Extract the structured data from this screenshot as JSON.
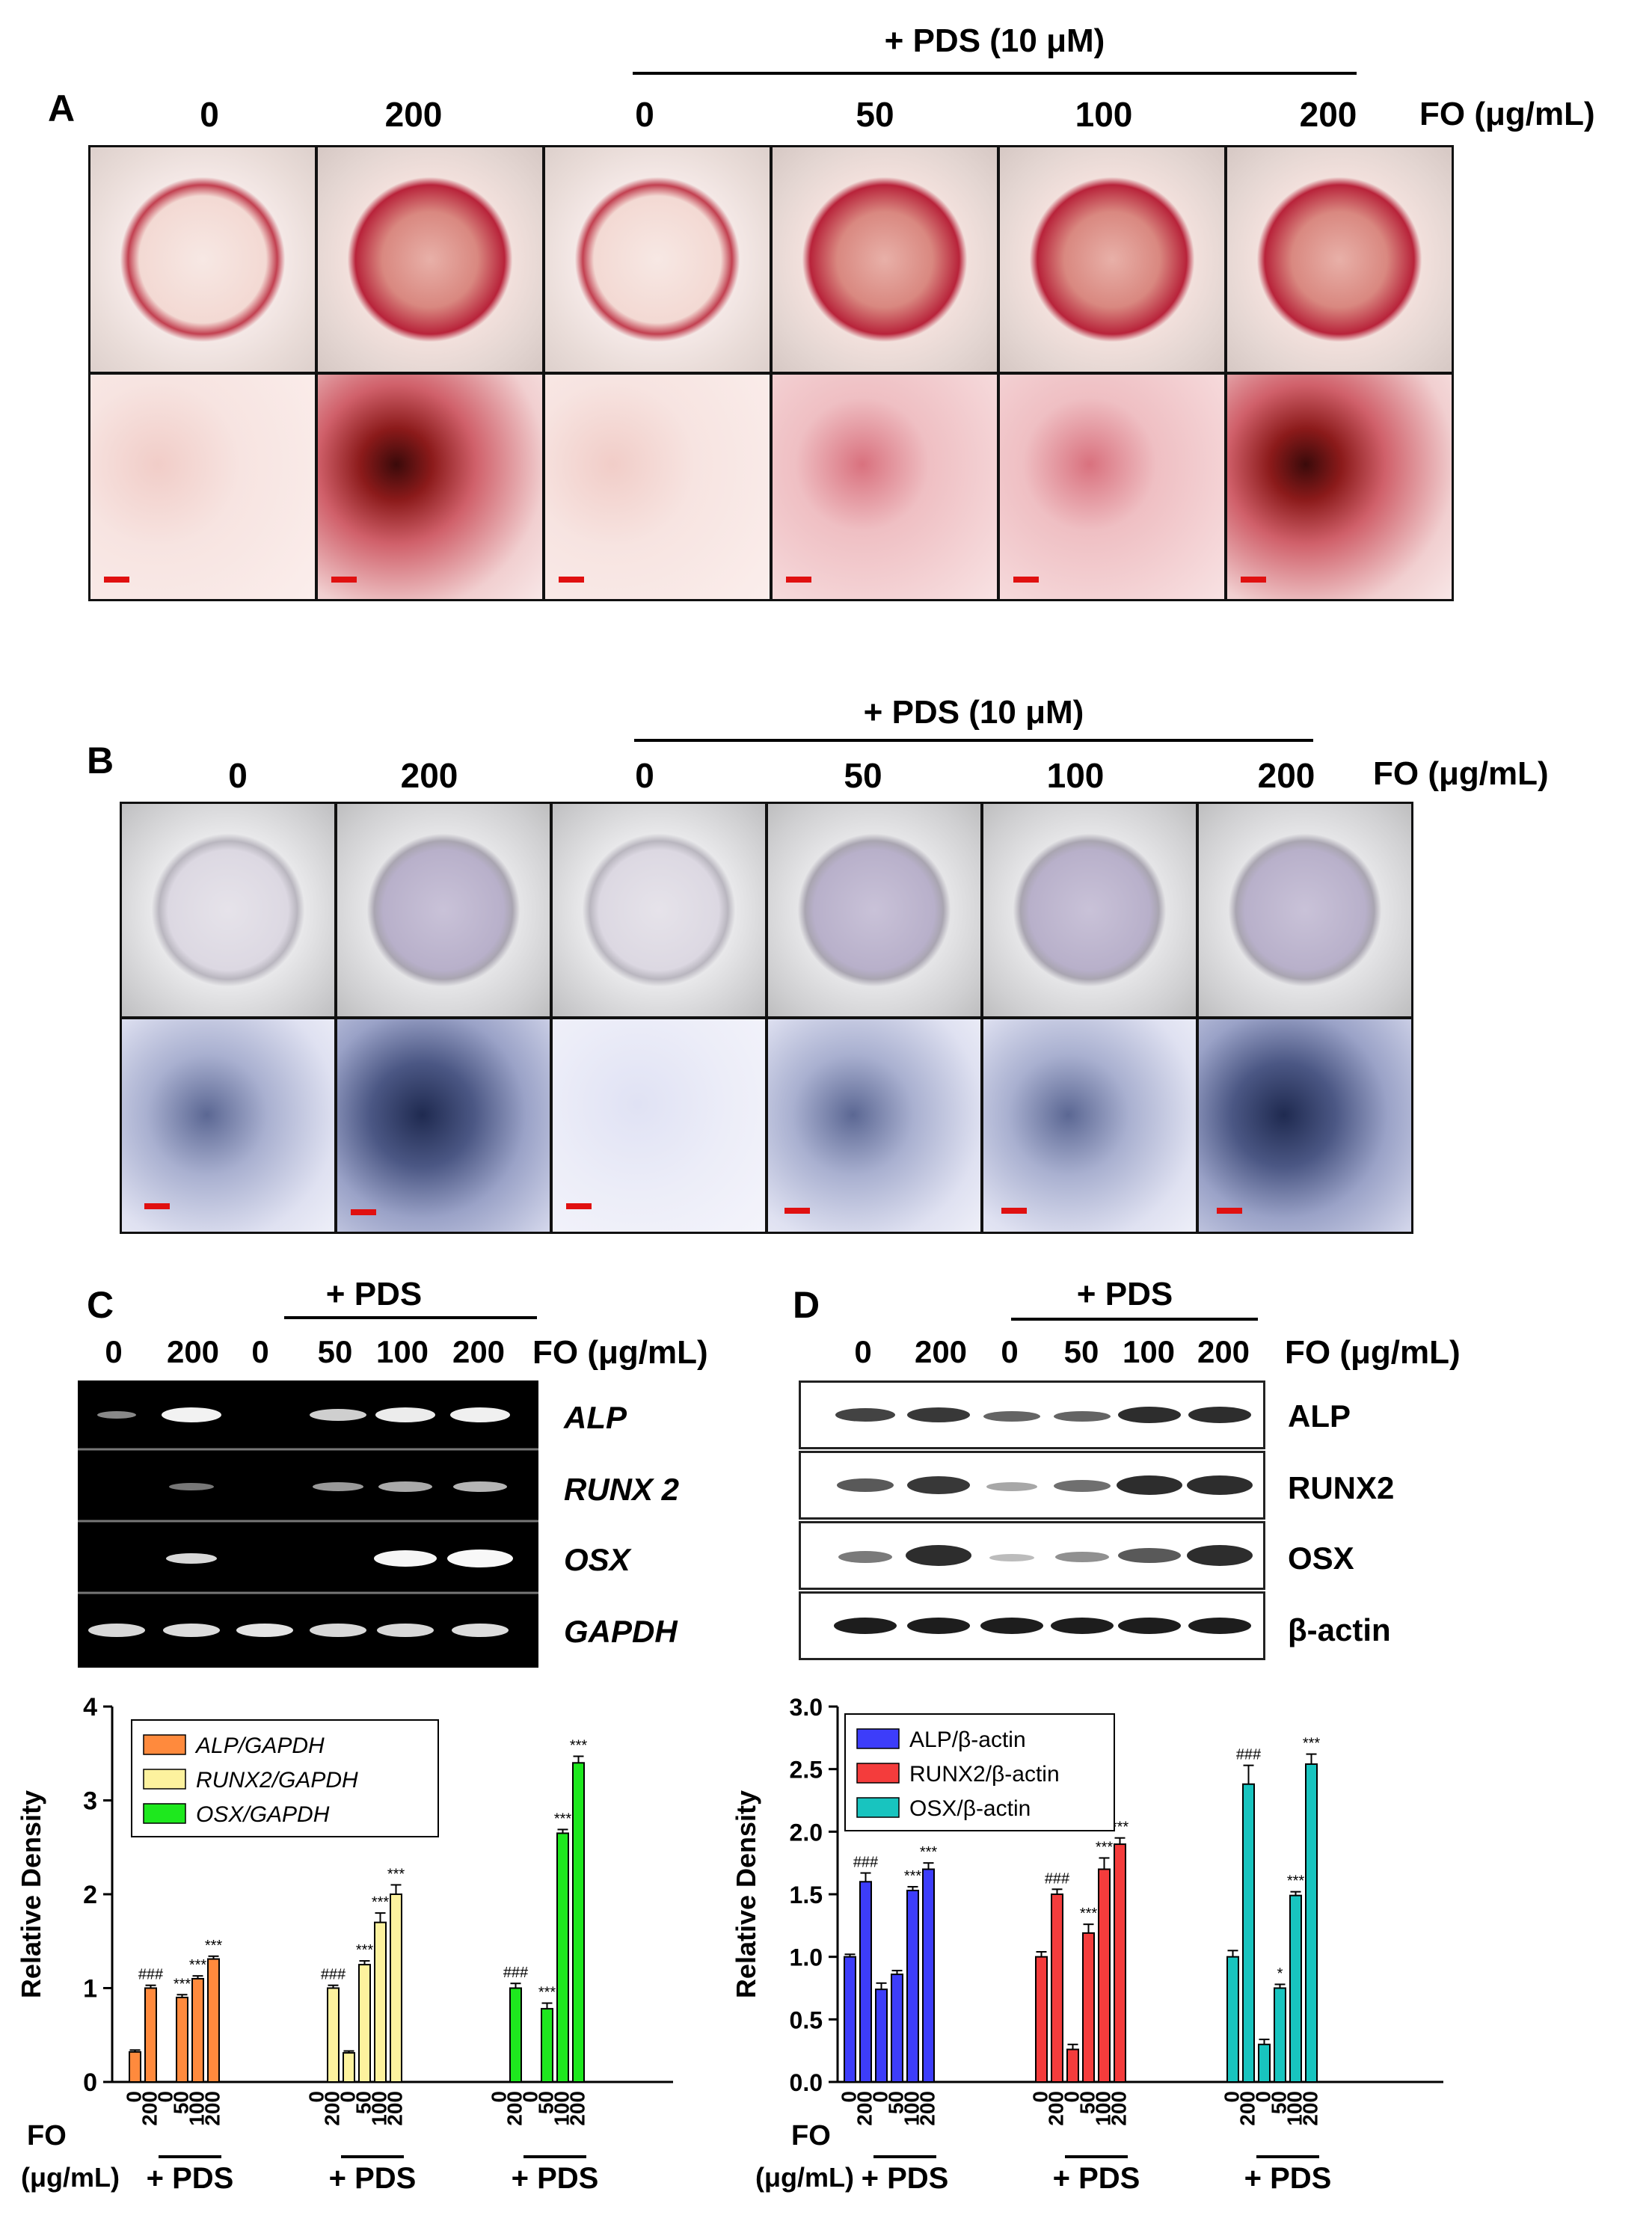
{
  "panels": {
    "A": {
      "letter": "A",
      "pds_label": "+ PDS (10 μM)",
      "fo_label": "FO (μg/mL)",
      "columns": [
        "0",
        "200",
        "0",
        "50",
        "100",
        "200"
      ]
    },
    "B": {
      "letter": "B",
      "pds_label": "+ PDS (10 μM)",
      "fo_label": "FO (μg/mL)",
      "columns": [
        "0",
        "200",
        "0",
        "50",
        "100",
        "200"
      ]
    },
    "C": {
      "letter": "C",
      "pds_label": "+ PDS",
      "fo_label": "FO (μg/mL)",
      "lanes": [
        "0",
        "200",
        "0",
        "50",
        "100",
        "200"
      ],
      "genes": [
        "ALP",
        "RUNX 2",
        "OSX",
        "GAPDH"
      ]
    },
    "D": {
      "letter": "D",
      "pds_label": "+ PDS",
      "fo_label": "FO (μg/mL)",
      "lanes": [
        "0",
        "200",
        "0",
        "50",
        "100",
        "200"
      ],
      "proteins": [
        "ALP",
        "RUNX2",
        "OSX",
        "β-actin"
      ]
    }
  },
  "bottom_labels": {
    "fo": "FO",
    "units": "(μg/mL)",
    "pds": "+ PDS"
  },
  "chart_data": [
    {
      "type": "bar",
      "panel": "C",
      "ylabel": "Relative Density",
      "ylim": [
        0,
        4
      ],
      "yticks": [
        "0",
        "1",
        "2",
        "3",
        "4"
      ],
      "categories": [
        "0",
        "200",
        "0",
        "50",
        "100",
        "200"
      ],
      "legend_position": "top-left",
      "series": [
        {
          "name": "ALP/GAPDH",
          "color": "#ff8a3d",
          "values": [
            0.32,
            1.0,
            0.0,
            0.9,
            1.1,
            1.31
          ],
          "errors": [
            0.02,
            0.03,
            0,
            0.03,
            0.03,
            0.03
          ],
          "annotations": [
            "",
            "###",
            "",
            "***",
            "***",
            "***"
          ]
        },
        {
          "name": "RUNX2/GAPDH",
          "color": "#fdf29e",
          "values": [
            0.0,
            1.0,
            0.31,
            1.25,
            1.7,
            2.0
          ],
          "errors": [
            0,
            0.03,
            0.02,
            0.04,
            0.1,
            0.1
          ],
          "annotations": [
            "",
            "###",
            "",
            "***",
            "***",
            "***"
          ]
        },
        {
          "name": "OSX/GAPDH",
          "color": "#1ee81e",
          "values": [
            0.0,
            1.0,
            0.0,
            0.78,
            2.65,
            3.4
          ],
          "errors": [
            0,
            0.05,
            0,
            0.06,
            0.04,
            0.07
          ],
          "annotations": [
            "",
            "###",
            "",
            "***",
            "***",
            "***"
          ]
        }
      ]
    },
    {
      "type": "bar",
      "panel": "D",
      "ylabel": "Relative Density",
      "ylim": [
        0,
        3.0
      ],
      "yticks": [
        "0.0",
        "0.5",
        "1.0",
        "1.5",
        "2.0",
        "2.5",
        "3.0"
      ],
      "categories": [
        "0",
        "200",
        "0",
        "50",
        "100",
        "200"
      ],
      "legend_position": "top-left",
      "series": [
        {
          "name": "ALP/β-actin",
          "color": "#3d3dfa",
          "values": [
            1.0,
            1.6,
            0.74,
            0.86,
            1.53,
            1.7
          ],
          "errors": [
            0.02,
            0.07,
            0.05,
            0.03,
            0.03,
            0.05
          ],
          "annotations": [
            "",
            "###",
            "",
            "",
            "***",
            "***"
          ]
        },
        {
          "name": "RUNX2/β-actin",
          "color": "#f43c3c",
          "values": [
            1.0,
            1.5,
            0.26,
            1.19,
            1.7,
            1.9
          ],
          "errors": [
            0.04,
            0.04,
            0.04,
            0.07,
            0.09,
            0.05
          ],
          "annotations": [
            "",
            "###",
            "",
            "***",
            "***",
            "***"
          ]
        },
        {
          "name": "OSX/β-actin",
          "color": "#18c4bf",
          "values": [
            1.0,
            2.38,
            0.3,
            0.75,
            1.49,
            2.54
          ],
          "errors": [
            0.05,
            0.15,
            0.04,
            0.03,
            0.03,
            0.08
          ],
          "annotations": [
            "",
            "###",
            "",
            "*",
            "***",
            "***"
          ]
        }
      ]
    }
  ]
}
